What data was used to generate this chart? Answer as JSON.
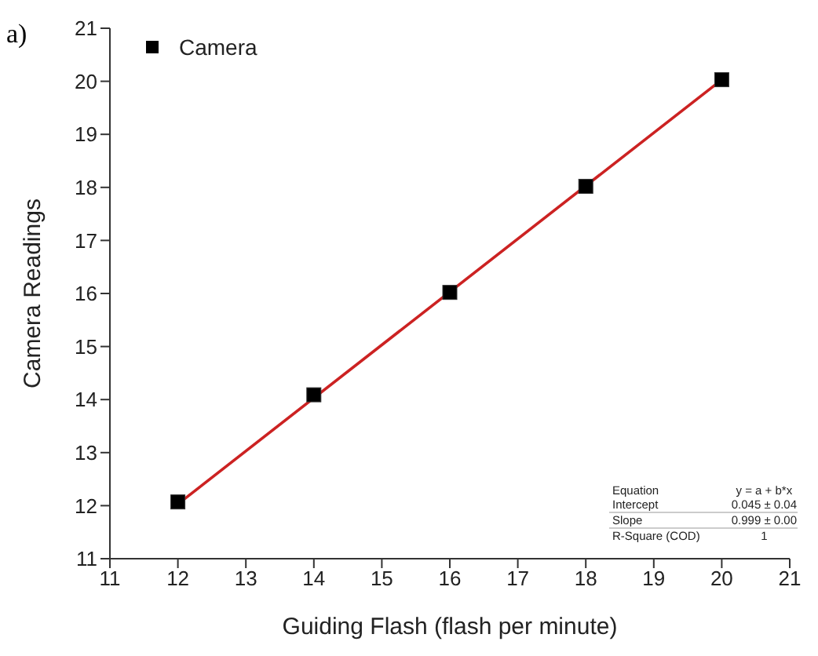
{
  "chart_data": {
    "type": "scatter",
    "xlabel": "Guiding Flash (flash per minute)",
    "ylabel": "Camera Readings",
    "annotations": [
      "a)",
      "Equation",
      "y = a + b*x",
      "Intercept",
      "0.045 ± 0.04",
      "Slope",
      "0.999 ± 0.00",
      "R-Square (COD)",
      "1"
    ],
    "series": [
      {
        "name": "Camera",
        "marker": "square",
        "color": "#000000",
        "x": [
          12,
          14,
          16,
          18,
          20
        ],
        "values": [
          12.07,
          14.09,
          16.02,
          18.02,
          20.03
        ]
      },
      {
        "type": "line",
        "color": "#cc2222",
        "x": [
          12,
          20
        ],
        "values": [
          12.03,
          20.03
        ]
      }
    ],
    "xlim": [
      11,
      21
    ],
    "xticks": [
      11,
      12,
      13,
      14,
      15,
      16,
      17,
      18,
      19,
      20,
      21
    ],
    "ylim": [
      11,
      21
    ],
    "yticks": [
      11,
      12,
      13,
      14,
      15,
      16,
      17,
      18,
      19,
      20,
      21
    ],
    "legend": "top left",
    "line_style": "solid"
  }
}
